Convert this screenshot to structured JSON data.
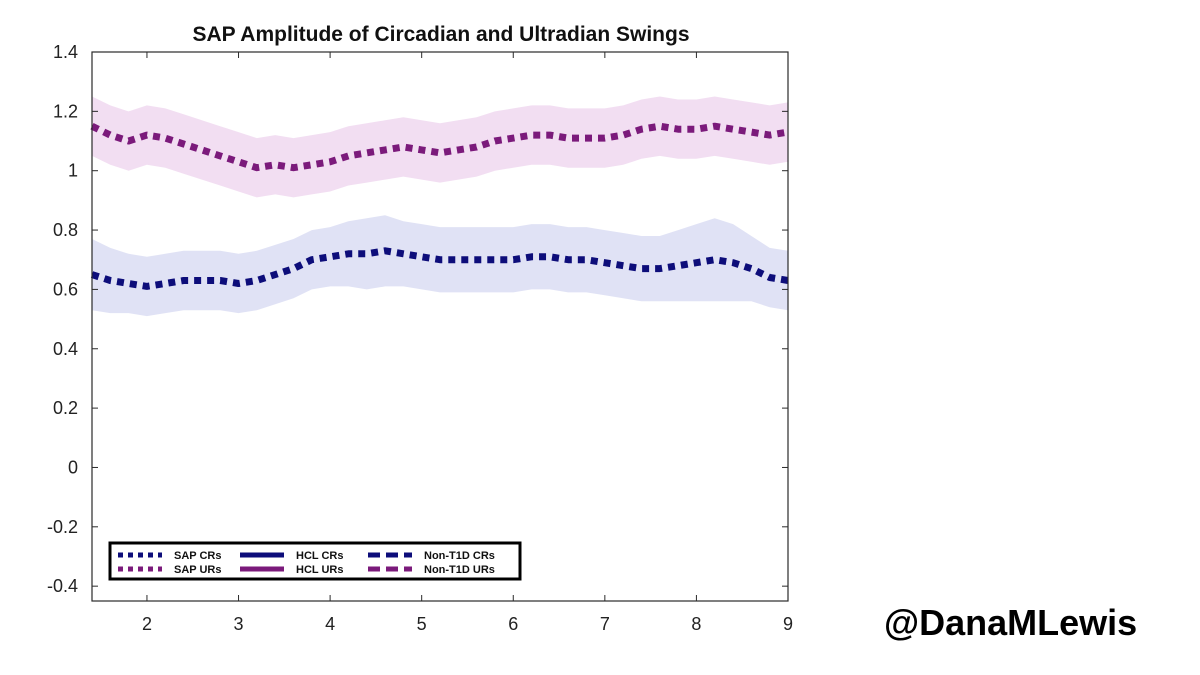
{
  "chart_data": {
    "type": "line",
    "title": "SAP Amplitude of Circadian and Ultradian Swings",
    "xlabel": "",
    "ylabel": "",
    "xlim": [
      1.4,
      9
    ],
    "ylim": [
      -0.45,
      1.4
    ],
    "xticks": [
      2,
      3,
      4,
      5,
      6,
      7,
      8,
      9
    ],
    "yticks": [
      -0.4,
      -0.2,
      0,
      0.2,
      0.4,
      0.6,
      0.8,
      1,
      1.2,
      1.4
    ],
    "x": [
      1.4,
      1.6,
      1.8,
      2.0,
      2.2,
      2.4,
      2.6,
      2.8,
      3.0,
      3.2,
      3.4,
      3.6,
      3.8,
      4.0,
      4.2,
      4.4,
      4.6,
      4.8,
      5.0,
      5.2,
      5.4,
      5.6,
      5.8,
      6.0,
      6.2,
      6.4,
      6.6,
      6.8,
      7.0,
      7.2,
      7.4,
      7.6,
      7.8,
      8.0,
      8.2,
      8.4,
      8.6,
      8.8,
      9.0
    ],
    "series": [
      {
        "name": "SAP URs",
        "color": "#7B1A7B",
        "band_color": "#EDD3ED",
        "style": "dotted",
        "values": [
          1.15,
          1.12,
          1.1,
          1.12,
          1.11,
          1.09,
          1.07,
          1.05,
          1.03,
          1.01,
          1.02,
          1.01,
          1.02,
          1.03,
          1.05,
          1.06,
          1.07,
          1.08,
          1.07,
          1.06,
          1.07,
          1.08,
          1.1,
          1.11,
          1.12,
          1.12,
          1.11,
          1.11,
          1.11,
          1.12,
          1.14,
          1.15,
          1.14,
          1.14,
          1.15,
          1.14,
          1.13,
          1.12,
          1.13
        ],
        "band": [
          0.1,
          0.1,
          0.1,
          0.1,
          0.1,
          0.1,
          0.1,
          0.1,
          0.1,
          0.1,
          0.1,
          0.1,
          0.1,
          0.1,
          0.1,
          0.1,
          0.1,
          0.1,
          0.1,
          0.1,
          0.1,
          0.1,
          0.1,
          0.1,
          0.1,
          0.1,
          0.1,
          0.1,
          0.1,
          0.1,
          0.1,
          0.1,
          0.1,
          0.1,
          0.1,
          0.1,
          0.1,
          0.1,
          0.1
        ]
      },
      {
        "name": "SAP CRs",
        "color": "#0D0D7A",
        "band_color": "#D6D8F2",
        "style": "dotted",
        "values": [
          0.65,
          0.63,
          0.62,
          0.61,
          0.62,
          0.63,
          0.63,
          0.63,
          0.62,
          0.63,
          0.65,
          0.67,
          0.7,
          0.71,
          0.72,
          0.72,
          0.73,
          0.72,
          0.71,
          0.7,
          0.7,
          0.7,
          0.7,
          0.7,
          0.71,
          0.71,
          0.7,
          0.7,
          0.69,
          0.68,
          0.67,
          0.67,
          0.68,
          0.69,
          0.7,
          0.69,
          0.67,
          0.64,
          0.63
        ],
        "band": [
          0.12,
          0.11,
          0.1,
          0.1,
          0.1,
          0.1,
          0.1,
          0.1,
          0.1,
          0.1,
          0.1,
          0.1,
          0.1,
          0.1,
          0.11,
          0.12,
          0.12,
          0.11,
          0.11,
          0.11,
          0.11,
          0.11,
          0.11,
          0.11,
          0.11,
          0.11,
          0.11,
          0.11,
          0.11,
          0.11,
          0.11,
          0.11,
          0.12,
          0.13,
          0.14,
          0.13,
          0.11,
          0.1,
          0.1
        ]
      }
    ],
    "legend": {
      "placement": "bottom-left",
      "entries": [
        {
          "label": "SAP CRs",
          "color": "#0D0D7A",
          "style": "dotted"
        },
        {
          "label": "SAP URs",
          "color": "#7B1A7B",
          "style": "dotted"
        },
        {
          "label": "HCL CRs",
          "color": "#0D0D7A",
          "style": "solid"
        },
        {
          "label": "HCL URs",
          "color": "#7B1A7B",
          "style": "solid"
        },
        {
          "label": "Non-T1D CRs",
          "color": "#0D0D7A",
          "style": "dashed"
        },
        {
          "label": "Non-T1D URs",
          "color": "#7B1A7B",
          "style": "dashed"
        }
      ]
    },
    "grid": false
  },
  "credit": "@DanaMLewis"
}
